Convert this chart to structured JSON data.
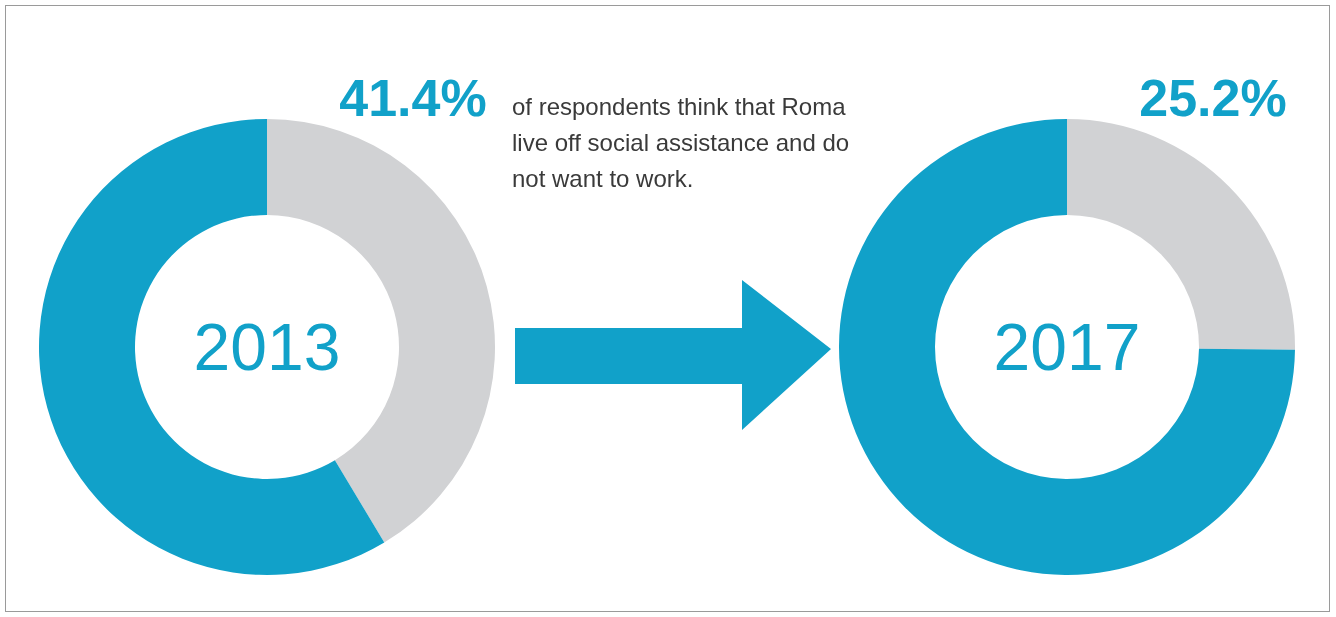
{
  "chart_data": [
    {
      "type": "donut",
      "title": "2013",
      "categories": [
        null,
        null
      ],
      "values": [
        41.4,
        58.6
      ],
      "colors": [
        "#d1d2d4",
        "#11a1c9"
      ],
      "value_labels": [
        "41.4%",
        null
      ],
      "annotations": [
        "of respondents think that Roma live off social assistance and do not want to work."
      ]
    },
    {
      "type": "donut",
      "title": "2017",
      "categories": [
        null,
        null
      ],
      "values": [
        25.2,
        74.8
      ],
      "colors": [
        "#d1d2d4",
        "#11a1c9"
      ],
      "value_labels": [
        "25.2%",
        null
      ]
    }
  ]
}
